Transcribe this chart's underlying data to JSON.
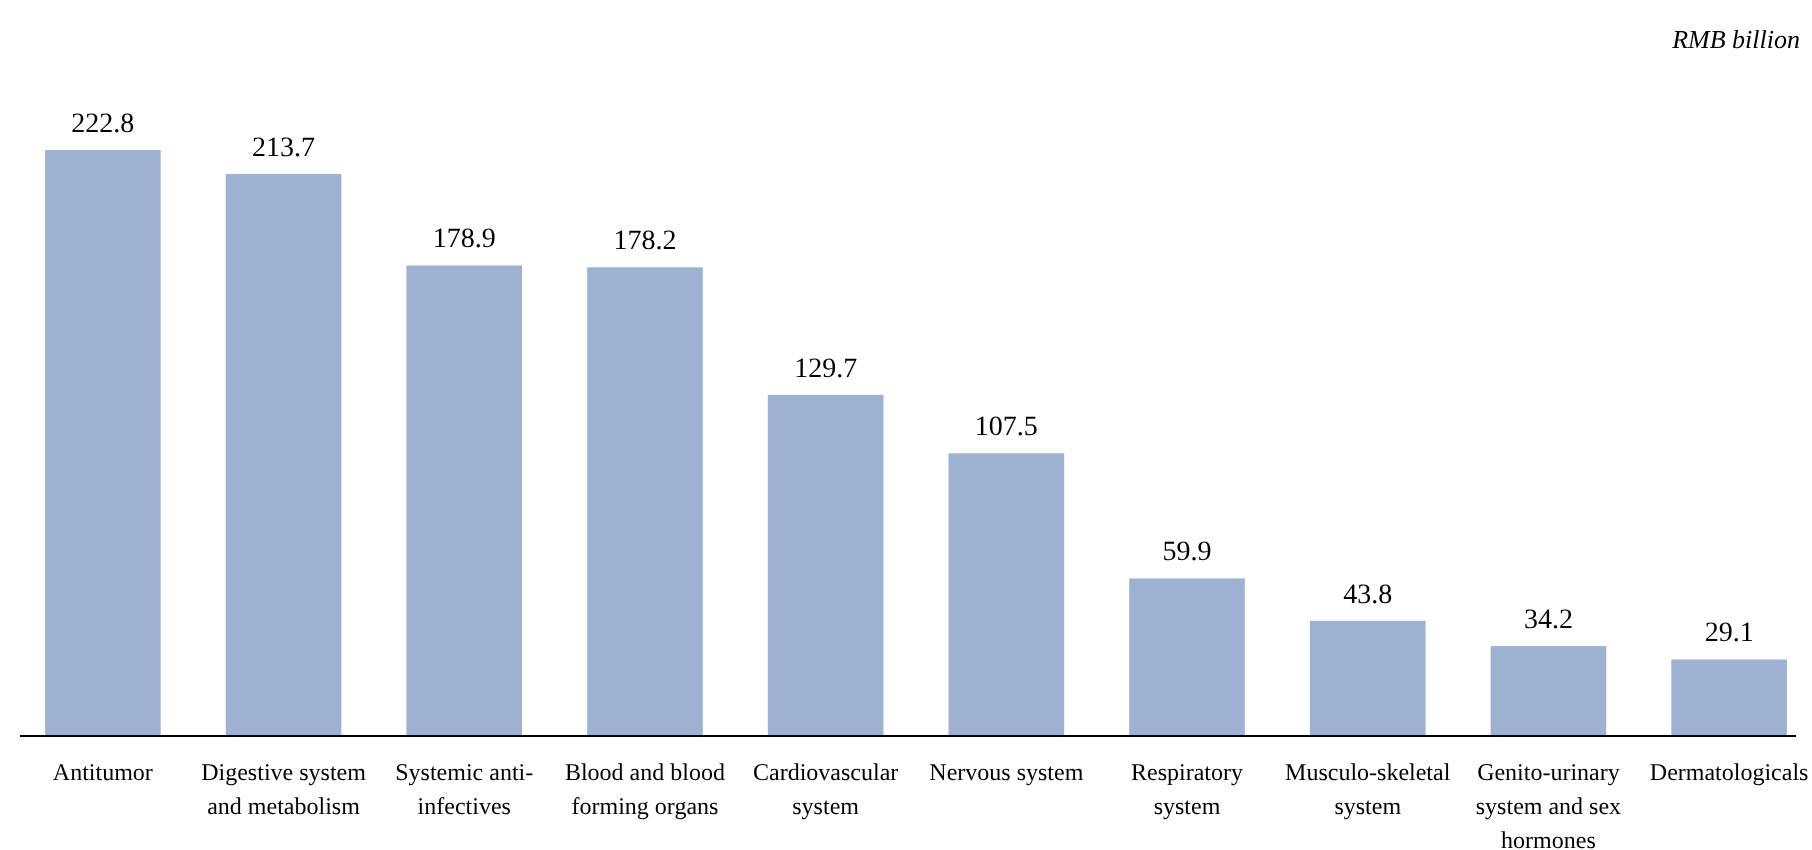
{
  "chart_data": {
    "type": "bar",
    "categories": [
      "Antitumor",
      "Digestive system and metabolism",
      "Systemic anti-infectives",
      "Blood and blood forming organs",
      "Cardiovascular system",
      "Nervous system",
      "Respiratory system",
      "Musculo-skeletal system",
      "Genito-urinary system and sex hormones",
      "Dermatologicals"
    ],
    "values": [
      222.8,
      213.7,
      178.9,
      178.2,
      129.7,
      107.5,
      59.9,
      43.8,
      34.2,
      29.1
    ],
    "color": "#9fb1d3",
    "data_labels": true,
    "tick_labels": "x",
    "annotations": [
      "RMB billion"
    ]
  }
}
